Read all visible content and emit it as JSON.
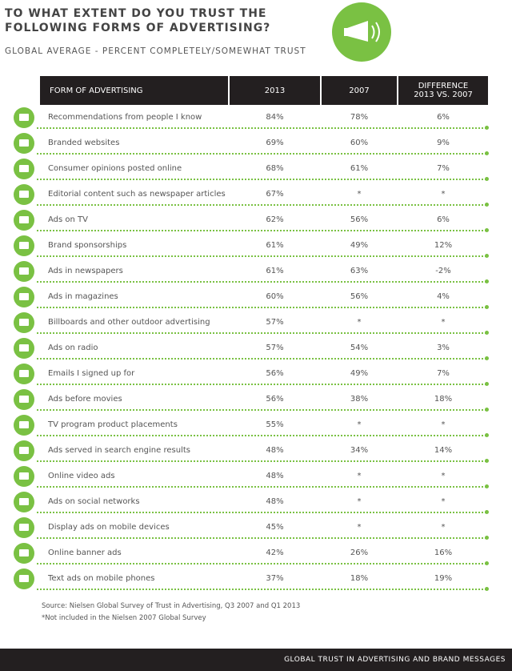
{
  "header": {
    "title_lines": [
      "TO WHAT EXTENT DO YOU TRUST THE",
      "FOLLOWING FORMS OF ADVERTISING?"
    ],
    "subtitle": "GLOBAL AVERAGE - PERCENT COMPLETELY/SOMEWHAT TRUST"
  },
  "table": {
    "columns": [
      "FORM OF ADVERTISING",
      "2013",
      "2007",
      "DIFFERENCE 2013 VS. 2007"
    ],
    "rows": [
      [
        "Recommendations from people I know",
        "84%",
        "78%",
        "6%"
      ],
      [
        "Branded websites",
        "69%",
        "60%",
        "9%"
      ],
      [
        "Consumer opinions posted online",
        "68%",
        "61%",
        "7%"
      ],
      [
        "Editorial content such as newspaper articles",
        "67%",
        "*",
        "*"
      ],
      [
        "Ads on TV",
        "62%",
        "56%",
        "6%"
      ],
      [
        "Brand sponsorships",
        "61%",
        "49%",
        "12%"
      ],
      [
        "Ads in newspapers",
        "61%",
        "63%",
        "-2%"
      ],
      [
        "Ads in magazines",
        "60%",
        "56%",
        "4%"
      ],
      [
        "Billboards and other outdoor advertising",
        "57%",
        "*",
        "*"
      ],
      [
        "Ads on radio",
        "57%",
        "54%",
        "3%"
      ],
      [
        "Emails I signed up for",
        "56%",
        "49%",
        "7%"
      ],
      [
        "Ads before movies",
        "56%",
        "38%",
        "18%"
      ],
      [
        "TV program product placements",
        "55%",
        "*",
        "*"
      ],
      [
        "Ads served in search engine results",
        "48%",
        "34%",
        "14%"
      ],
      [
        "Online video ads",
        "48%",
        "*",
        "*"
      ],
      [
        "Ads on social networks",
        "48%",
        "*",
        "*"
      ],
      [
        "Display ads on mobile devices",
        "45%",
        "*",
        "*"
      ],
      [
        "Online banner ads",
        "42%",
        "26%",
        "16%"
      ],
      [
        "Text ads on mobile phones",
        "37%",
        "18%",
        "19%"
      ]
    ]
  },
  "source": "Source: Nielsen Global Survey of Trust in Advertising, Q3 2007 and Q1 2013",
  "note": "*Not included in the Nielsen 2007 Global Survey",
  "footer": "GLOBAL TRUST IN ADVERTISING AND BRAND MESSAGES"
}
